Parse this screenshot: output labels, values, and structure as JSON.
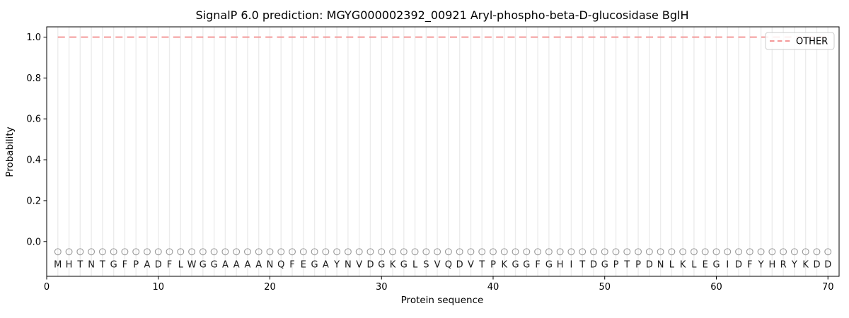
{
  "chart_data": {
    "type": "line",
    "title": "SignalP 6.0 prediction: MGYG000002392_00921 Aryl-phospho-beta-D-glucosidase BglH",
    "xlabel": "Protein sequence",
    "ylabel": "Probability",
    "xlim": [
      0,
      71
    ],
    "ylim": [
      -0.17,
      1.05
    ],
    "x_ticks": [
      0,
      10,
      20,
      30,
      40,
      50,
      60,
      70
    ],
    "y_ticks": [
      0.0,
      0.2,
      0.4,
      0.6,
      0.8,
      1.0
    ],
    "grid": "vertical gridline at each residue position 1-70",
    "legend": {
      "position": "upper-right",
      "entries": [
        {
          "label": "OTHER",
          "color": "#f28b8b",
          "linestyle": "dashed"
        }
      ]
    },
    "sequence": "MHTNTGFPADFLWGGAAAANQFEGAYNVDGKGLSVQDVTPKGGFGHITDGPTPDNLKLEGIDFYHRYKDD",
    "series": [
      {
        "name": "OTHER",
        "x_start": 1,
        "values": [
          1,
          1,
          1,
          1,
          1,
          1,
          1,
          1,
          1,
          1,
          1,
          1,
          1,
          1,
          1,
          1,
          1,
          1,
          1,
          1,
          1,
          1,
          1,
          1,
          1,
          1,
          1,
          1,
          1,
          1,
          1,
          1,
          1,
          1,
          1,
          1,
          1,
          1,
          1,
          1,
          1,
          1,
          1,
          1,
          1,
          1,
          1,
          1,
          1,
          1,
          1,
          1,
          1,
          1,
          1,
          1,
          1,
          1,
          1,
          1,
          1,
          1,
          1,
          1,
          1,
          1,
          1,
          1,
          1,
          1
        ]
      }
    ],
    "residue_marker": {
      "shape": "open-circle",
      "y": -0.05
    },
    "sequence_letter_y": -0.127
  },
  "colors": {
    "line": "#f28b8b",
    "grid": "#ececec",
    "marker": "#9a9a9a",
    "letter": "#1a1a1a",
    "frame": "#000000",
    "background": "#ffffff",
    "legend_border": "#cccccc"
  }
}
